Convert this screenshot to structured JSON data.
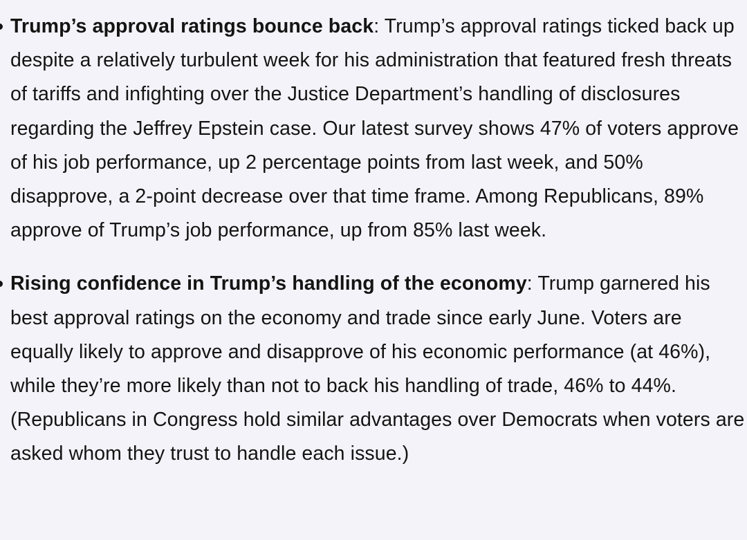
{
  "article": {
    "items": [
      {
        "heading": "Trump’s approval ratings bounce back",
        "separator": ":",
        "body": " Trump’s approval ratings ticked back up despite a relatively turbulent week for his administration that featured fresh threats of tariffs and infighting over the Justice Department’s handling of disclosures regarding the Jeffrey Epstein case. Our latest survey shows 47% of voters approve of his job performance, up 2 percentage points from last week, and 50% disapprove, a 2-point decrease over that time frame. Among Republicans, 89% approve of Trump’s job performance, up from 85% last week."
      },
      {
        "heading": "Rising confidence in Trump’s handling of the economy",
        "separator": ":",
        "body": " Trump garnered his best approval ratings on the economy and trade since early June. Voters are equally likely to approve and disapprove of his economic performance (at 46%), while they’re more likely than not to back his handling of trade, 46% to 44%. (Republicans in Congress hold similar advantages over Democrats when voters are asked whom they trust to handle each issue.)"
      }
    ]
  }
}
